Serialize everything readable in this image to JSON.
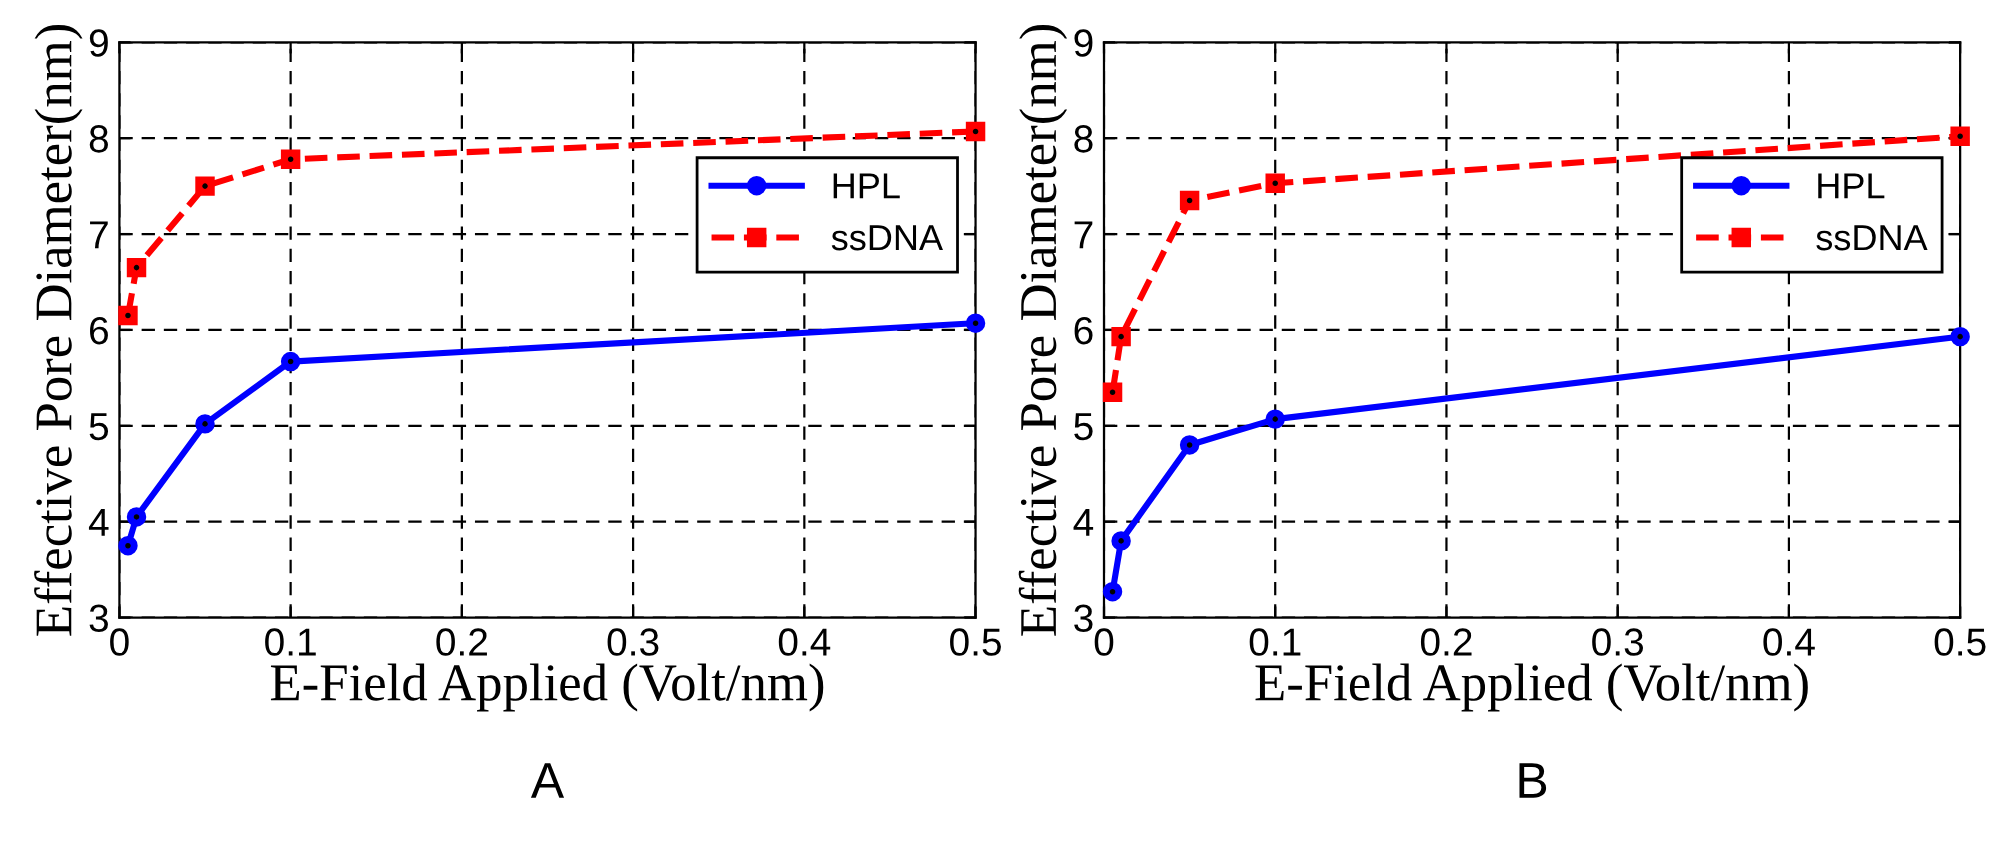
{
  "chart_data": [
    {
      "type": "line",
      "xlabel": "E-Field Applied (Volt/nm)",
      "ylabel": "Effective Pore Diameter(nm)",
      "annotations": [
        "A"
      ],
      "xlim": [
        0,
        0.5
      ],
      "xticks": [
        0,
        0.1,
        0.2,
        0.3,
        0.4,
        0.5
      ],
      "ylim": [
        3,
        9
      ],
      "yticks": [
        3,
        4,
        5,
        6,
        7,
        8,
        9
      ],
      "grid": true,
      "legend": "right",
      "x": [
        0.005,
        0.01,
        0.05,
        0.1,
        0.5
      ],
      "series": [
        {
          "name": "HPL",
          "color": "#0000ff",
          "marker": "circle",
          "line_style": "solid",
          "values": [
            3.75,
            4.05,
            5.02,
            5.67,
            6.07
          ]
        },
        {
          "name": "ssDNA",
          "color": "#ff0000",
          "marker": "square",
          "line_style": "dashed",
          "values": [
            6.15,
            6.65,
            7.5,
            7.78,
            8.07
          ]
        }
      ]
    },
    {
      "type": "line",
      "xlabel": "E-Field Applied (Volt/nm)",
      "ylabel": "Effective Pore Diameter(nm)",
      "annotations": [
        "B"
      ],
      "xlim": [
        0,
        0.5
      ],
      "xticks": [
        0,
        0.1,
        0.2,
        0.3,
        0.4,
        0.5
      ],
      "ylim": [
        3,
        9
      ],
      "yticks": [
        3,
        4,
        5,
        6,
        7,
        8,
        9
      ],
      "grid": true,
      "legend": "right",
      "x": [
        0.005,
        0.01,
        0.05,
        0.1,
        0.5
      ],
      "series": [
        {
          "name": "HPL",
          "color": "#0000ff",
          "marker": "circle",
          "line_style": "solid",
          "values": [
            3.27,
            3.8,
            4.8,
            5.07,
            5.93
          ]
        },
        {
          "name": "ssDNA",
          "color": "#ff0000",
          "marker": "square",
          "line_style": "dashed",
          "values": [
            5.35,
            5.93,
            7.35,
            7.53,
            8.02
          ]
        }
      ]
    }
  ]
}
